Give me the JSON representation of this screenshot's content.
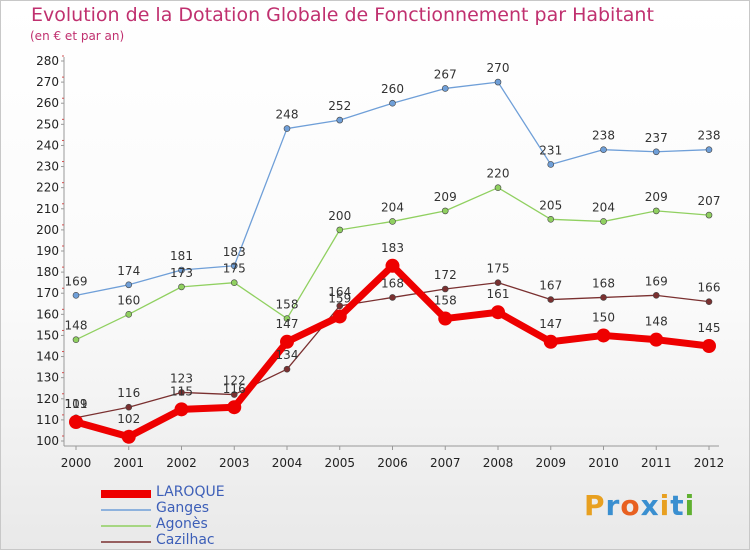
{
  "title": "Evolution de la Dotation Globale de Fonctionnement par Habitant",
  "subtitle": "(en € et par an)",
  "logo": "Proxiti",
  "chart_data": {
    "type": "line",
    "title": "Evolution de la Dotation Globale de Fonctionnement par Habitant",
    "subtitle": "(en € et par an)",
    "x": [
      "2000",
      "2001",
      "2002",
      "2003",
      "2004",
      "2005",
      "2006",
      "2007",
      "2008",
      "2009",
      "2010",
      "2011",
      "2012"
    ],
    "ylim": [
      100,
      280
    ],
    "yticks": [
      100,
      110,
      120,
      130,
      140,
      150,
      160,
      170,
      180,
      190,
      200,
      210,
      220,
      230,
      240,
      250,
      260,
      270,
      280
    ],
    "grid": false,
    "legend_position": "bottom-left",
    "series": [
      {
        "name": "LAROQUE",
        "color": "#ee0000",
        "values": [
          109,
          102,
          115,
          116,
          147,
          159,
          183,
          158,
          161,
          147,
          150,
          148,
          145
        ]
      },
      {
        "name": "Ganges",
        "color": "#6f9fd8",
        "values": [
          169,
          174,
          181,
          183,
          248,
          252,
          260,
          267,
          270,
          231,
          238,
          237,
          238
        ]
      },
      {
        "name": "Agonès",
        "color": "#90d060",
        "values": [
          148,
          160,
          173,
          175,
          158,
          200,
          204,
          209,
          220,
          205,
          204,
          209,
          207
        ]
      },
      {
        "name": "Cazilhac",
        "color": "#7a3030",
        "values": [
          111,
          116,
          123,
          122,
          134,
          164,
          168,
          172,
          175,
          167,
          168,
          169,
          166
        ]
      }
    ]
  }
}
